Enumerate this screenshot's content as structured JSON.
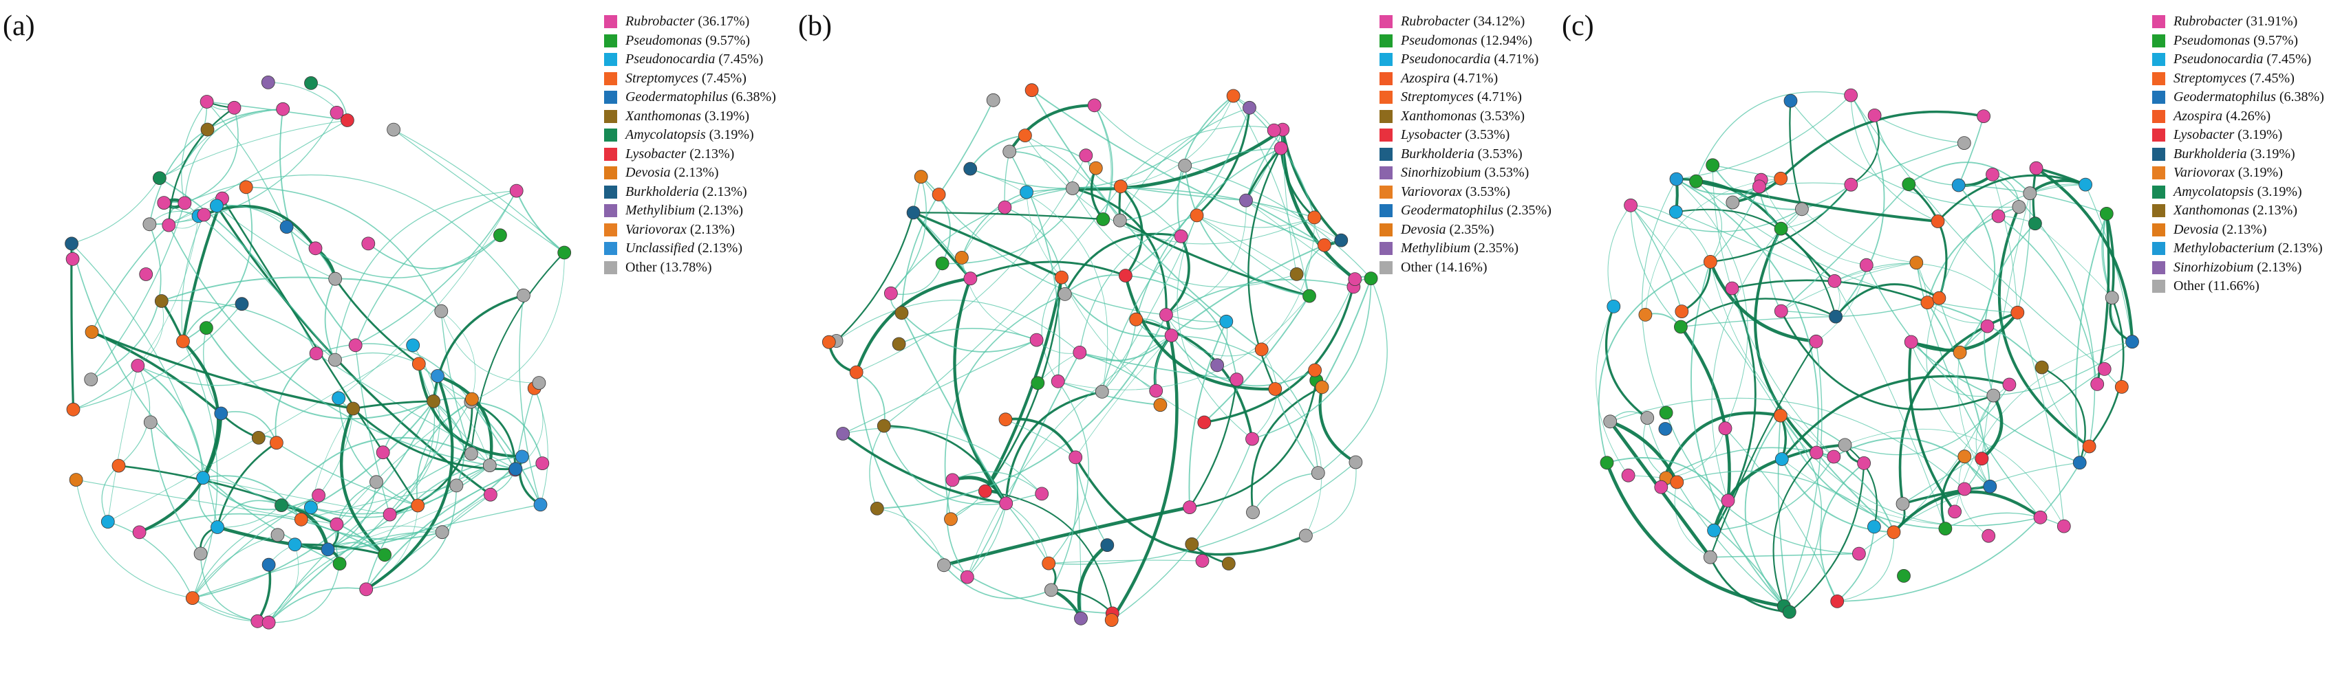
{
  "colors": {
    "Rubrobacter": "#e0479e",
    "Pseudomonas": "#1fa02f",
    "Pseudonocardia": "#18a9dd",
    "Streptomyces": "#f26322",
    "Geodermatophilus": "#1f74b8",
    "Xanthomonas": "#8e6b1c",
    "Amycolatopsis": "#178a55",
    "Lysobacter": "#e8313e",
    "Devosia": "#e07b1a",
    "Burkholderia": "#1d5f86",
    "Methylibium": "#8a64ab",
    "Variovorax": "#e67e22",
    "Unclassified": "#2d8fd5",
    "Azospira": "#f15a24",
    "Sinorhizobium": "#8a64ab",
    "Methylobacterium": "#1e9ad6",
    "Other": "#a9a9a9",
    "edge_light": "#52c4a6",
    "edge_dark": "#0f7a4f"
  },
  "panels": [
    {
      "label": "(a)",
      "legend": [
        {
          "name": "Rubrobacter",
          "pct": "(36.17%)",
          "italic": true
        },
        {
          "name": "Pseudomonas",
          "pct": "(9.57%)",
          "italic": true
        },
        {
          "name": "Pseudonocardia",
          "pct": "(7.45%)",
          "italic": true
        },
        {
          "name": "Streptomyces",
          "pct": "(7.45%)",
          "italic": true
        },
        {
          "name": "Geodermatophilus",
          "pct": "(6.38%)",
          "italic": true
        },
        {
          "name": "Xanthomonas",
          "pct": "(3.19%)",
          "italic": true
        },
        {
          "name": "Amycolatopsis",
          "pct": "(3.19%)",
          "italic": true
        },
        {
          "name": "Lysobacter",
          "pct": "(2.13%)",
          "italic": true
        },
        {
          "name": "Devosia",
          "pct": "(2.13%)",
          "italic": true
        },
        {
          "name": "Burkholderia",
          "pct": "(2.13%)",
          "italic": true
        },
        {
          "name": "Methylibium",
          "pct": "(2.13%)",
          "italic": true
        },
        {
          "name": "Variovorax",
          "pct": "(2.13%)",
          "italic": true
        },
        {
          "name": "Unclassified",
          "pct": "(2.13%)",
          "italic": true
        },
        {
          "name": "Other",
          "pct": "(13.78%)",
          "italic": false
        }
      ]
    },
    {
      "label": "(b)",
      "legend": [
        {
          "name": "Rubrobacter",
          "pct": "(34.12%)",
          "italic": true
        },
        {
          "name": "Pseudomonas",
          "pct": "(12.94%)",
          "italic": true
        },
        {
          "name": "Pseudonocardia",
          "pct": "(4.71%)",
          "italic": true
        },
        {
          "name": "Azospira",
          "pct": "(4.71%)",
          "italic": true
        },
        {
          "name": "Streptomyces",
          "pct": "(4.71%)",
          "italic": true
        },
        {
          "name": "Xanthomonas",
          "pct": "(3.53%)",
          "italic": true
        },
        {
          "name": "Lysobacter",
          "pct": "(3.53%)",
          "italic": true
        },
        {
          "name": "Burkholderia",
          "pct": "(3.53%)",
          "italic": true
        },
        {
          "name": "Sinorhizobium",
          "pct": "(3.53%)",
          "italic": true
        },
        {
          "name": "Variovorax",
          "pct": "(3.53%)",
          "italic": true
        },
        {
          "name": "Geodermatophilus",
          "pct": "(2.35%)",
          "italic": true
        },
        {
          "name": "Devosia",
          "pct": "(2.35%)",
          "italic": true
        },
        {
          "name": "Methylibium",
          "pct": "(2.35%)",
          "italic": true
        },
        {
          "name": "Other",
          "pct": "(14.16%)",
          "italic": false
        }
      ]
    },
    {
      "label": "(c)",
      "legend": [
        {
          "name": "Rubrobacter",
          "pct": "(31.91%)",
          "italic": true
        },
        {
          "name": "Pseudomonas",
          "pct": "(9.57%)",
          "italic": true
        },
        {
          "name": "Pseudonocardia",
          "pct": "(7.45%)",
          "italic": true
        },
        {
          "name": "Streptomyces",
          "pct": "(7.45%)",
          "italic": true
        },
        {
          "name": "Geodermatophilus",
          "pct": "(6.38%)",
          "italic": true
        },
        {
          "name": "Azospira",
          "pct": "(4.26%)",
          "italic": true
        },
        {
          "name": "Lysobacter",
          "pct": "(3.19%)",
          "italic": true
        },
        {
          "name": "Burkholderia",
          "pct": "(3.19%)",
          "italic": true
        },
        {
          "name": "Variovorax",
          "pct": "(3.19%)",
          "italic": true
        },
        {
          "name": "Amycolatopsis",
          "pct": "(3.19%)",
          "italic": true
        },
        {
          "name": "Xanthomonas",
          "pct": "(2.13%)",
          "italic": true
        },
        {
          "name": "Devosia",
          "pct": "(2.13%)",
          "italic": true
        },
        {
          "name": "Methylobacterium",
          "pct": "(2.13%)",
          "italic": true
        },
        {
          "name": "Sinorhizobium",
          "pct": "(2.13%)",
          "italic": true
        },
        {
          "name": "Other",
          "pct": "(11.66%)",
          "italic": false
        }
      ]
    }
  ]
}
